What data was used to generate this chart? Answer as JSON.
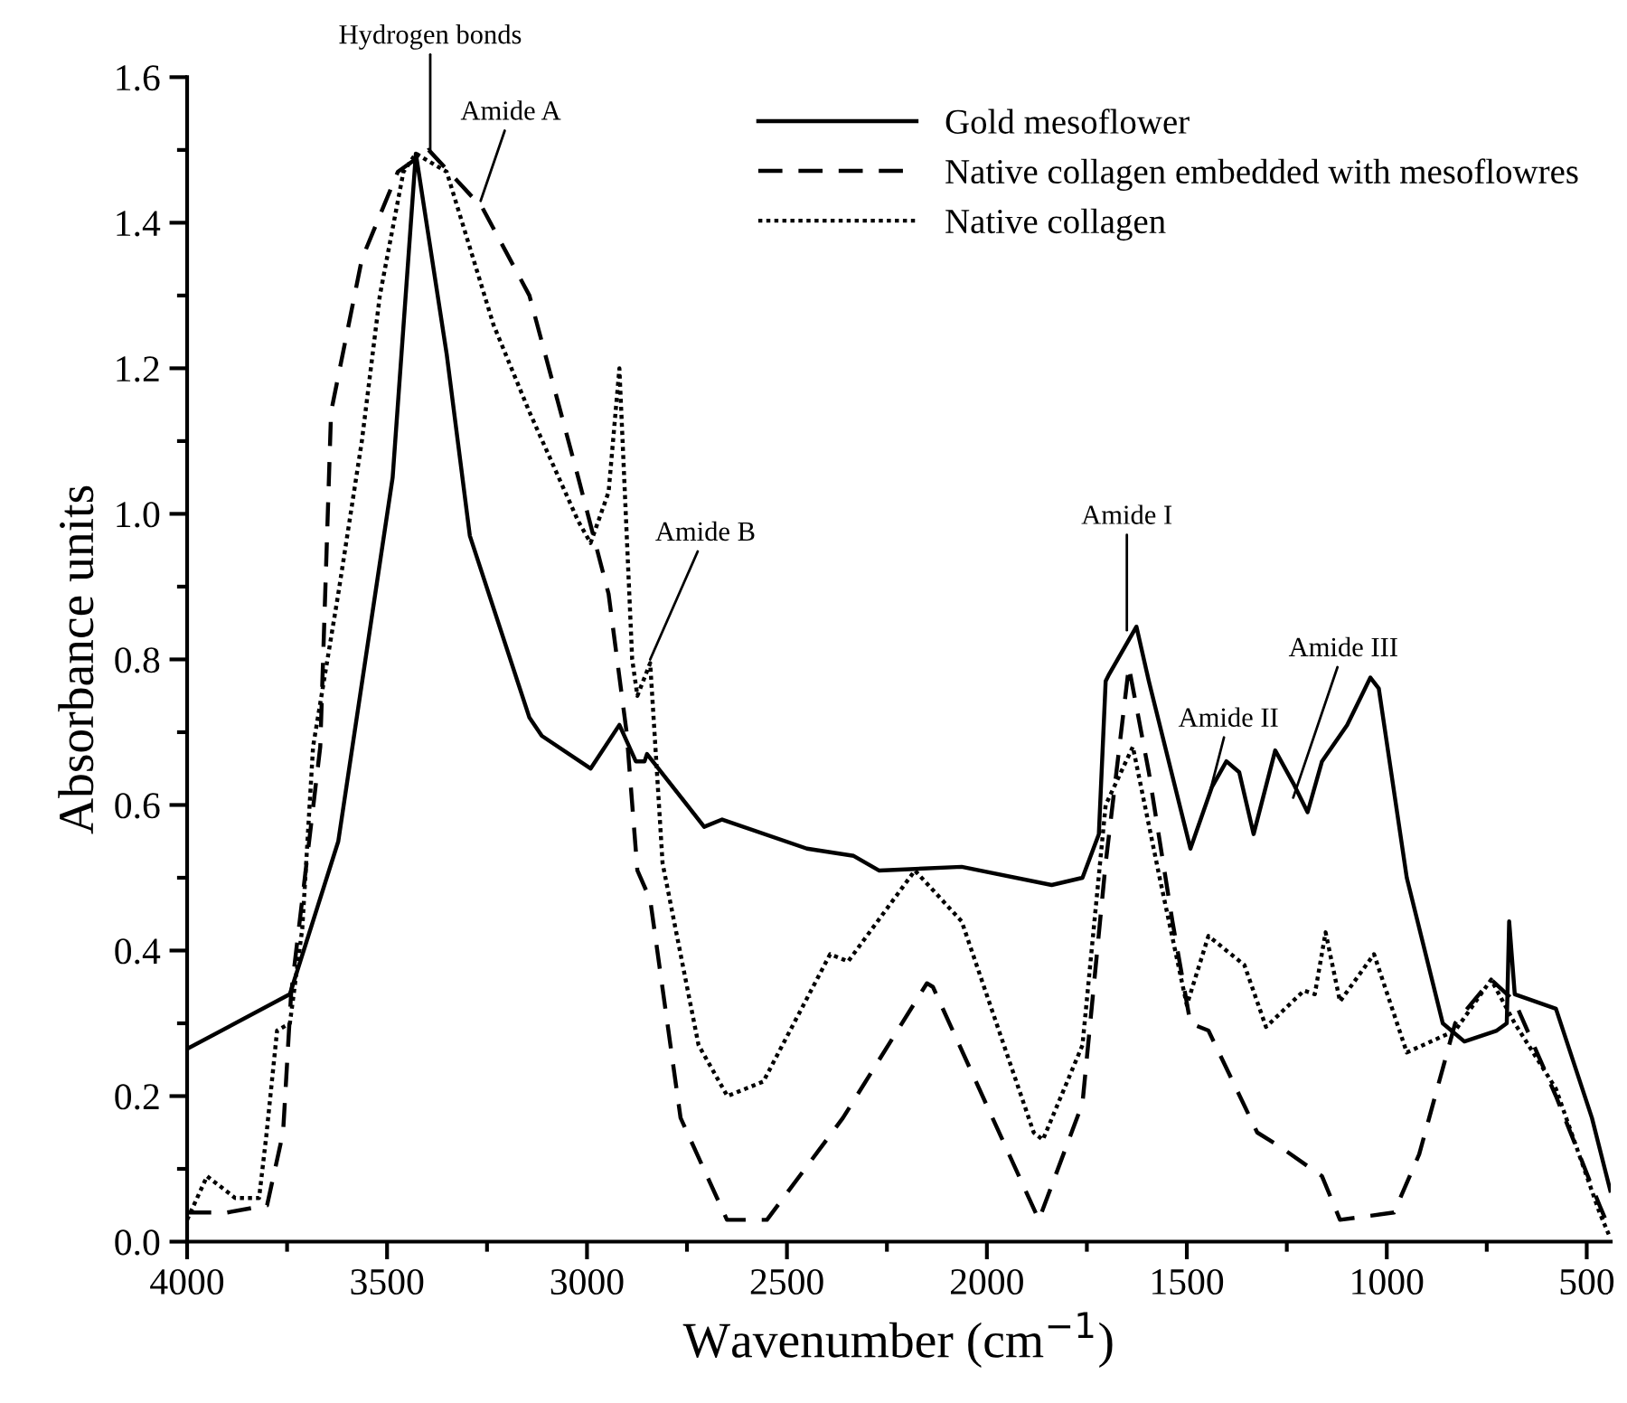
{
  "chart_data": {
    "type": "line",
    "xlabel": "Wavenumber (cm$^{−1}$)",
    "ylabel": "Absorbance units",
    "xlim": [
      4000,
      440
    ],
    "ylim": [
      0,
      1.6
    ],
    "xticks": [
      4000,
      3500,
      3000,
      2500,
      2000,
      1500,
      1000,
      500
    ],
    "yticks": [
      {
        "value": 0,
        "label": "0.0"
      },
      0.2,
      0.4,
      0.6,
      0.8,
      {
        "value": 1,
        "label": "1.0"
      },
      1.2,
      1.4,
      1.6
    ],
    "grid": false,
    "legend": "top right",
    "annotations": [
      {
        "text": "Hydrogen bonds",
        "x": 3392,
        "y": 1.5
      },
      {
        "text": "Amide A",
        "x": 3266,
        "y": 1.43
      },
      {
        "text": "Amide B",
        "x": 2842,
        "y": 0.8
      },
      {
        "text": "Amide I",
        "x": 1650,
        "y": 0.84
      },
      {
        "text": "Amide II",
        "x": 1446,
        "y": 0.61
      },
      {
        "text": "Amide III",
        "x": 1234,
        "y": 0.61
      }
    ],
    "series": [
      {
        "name": "Gold mesoflower",
        "color": "#000000",
        "line_style": "solid",
        "x": [
          4000,
          3743,
          3622,
          3486,
          3428,
          3351,
          3293,
          3144,
          3113,
          2991,
          2919,
          2878,
          2856,
          2850,
          2707,
          2662,
          2450,
          2333,
          2270,
          2063,
          1838,
          1761,
          1720,
          1703,
          1694,
          1626,
          1595,
          1491,
          1437,
          1401,
          1369,
          1333,
          1279,
          1234,
          1198,
          1162,
          1099,
          1041,
          1020,
          950,
          860,
          806,
          725,
          700,
          694,
          680,
          577,
          487,
          441
        ],
        "values": [
          0.265,
          0.34,
          0.55,
          1.05,
          1.495,
          1.22,
          0.97,
          0.72,
          0.695,
          0.65,
          0.71,
          0.66,
          0.66,
          0.67,
          0.57,
          0.58,
          0.54,
          0.53,
          0.51,
          0.515,
          0.49,
          0.5,
          0.56,
          0.77,
          0.78,
          0.845,
          0.77,
          0.54,
          0.625,
          0.66,
          0.645,
          0.56,
          0.675,
          0.63,
          0.59,
          0.66,
          0.71,
          0.775,
          0.76,
          0.5,
          0.3,
          0.275,
          0.29,
          0.3,
          0.44,
          0.34,
          0.32,
          0.17,
          0.07
        ]
      },
      {
        "name": "Native collagen embedded with mesoflowres",
        "color": "#000000",
        "line_style": "dashed",
        "x": [
          4000,
          3900,
          3800,
          3760,
          3740,
          3667,
          3640,
          3563,
          3473,
          3396,
          3261,
          3144,
          3022,
          2946,
          2901,
          2874,
          2842,
          2766,
          2650,
          2550,
          2360,
          2150,
          2135,
          1986,
          1870,
          1761,
          1703,
          1645,
          1595,
          1536,
          1491,
          1446,
          1324,
          1266,
          1162,
          1117,
          982,
          919,
          829,
          739,
          680,
          577,
          468,
          445
        ],
        "values": [
          0.04,
          0.04,
          0.05,
          0.15,
          0.34,
          0.68,
          1.14,
          1.35,
          1.47,
          1.5,
          1.42,
          1.3,
          1.05,
          0.89,
          0.7,
          0.51,
          0.47,
          0.17,
          0.03,
          0.03,
          0.17,
          0.355,
          0.35,
          0.17,
          0.03,
          0.19,
          0.52,
          0.79,
          0.645,
          0.44,
          0.3,
          0.29,
          0.15,
          0.13,
          0.09,
          0.03,
          0.04,
          0.12,
          0.3,
          0.36,
          0.33,
          0.2,
          0.05,
          0.02
        ]
      },
      {
        "name": "Native collagen",
        "color": "#000000",
        "line_style": "dotted",
        "x": [
          4000,
          3950,
          3880,
          3820,
          3802,
          3775,
          3743,
          3712,
          3685,
          3622,
          3563,
          3518,
          3459,
          3428,
          3351,
          3234,
          3144,
          3022,
          2991,
          2946,
          2919,
          2887,
          2874,
          2842,
          2829,
          2811,
          2721,
          2649,
          2559,
          2392,
          2347,
          2180,
          2063,
          1883,
          1860,
          1761,
          1703,
          1635,
          1568,
          1500,
          1446,
          1356,
          1302,
          1207,
          1180,
          1153,
          1117,
          1032,
          950,
          829,
          739,
          680,
          577,
          468,
          445
        ],
        "values": [
          0.03,
          0.09,
          0.06,
          0.06,
          0.145,
          0.29,
          0.3,
          0.43,
          0.68,
          0.89,
          1.1,
          1.3,
          1.47,
          1.495,
          1.47,
          1.26,
          1.14,
          0.99,
          0.96,
          1.03,
          1.2,
          0.8,
          0.75,
          0.795,
          0.68,
          0.52,
          0.27,
          0.2,
          0.22,
          0.395,
          0.385,
          0.51,
          0.44,
          0.15,
          0.14,
          0.27,
          0.6,
          0.68,
          0.5,
          0.325,
          0.42,
          0.38,
          0.295,
          0.345,
          0.34,
          0.425,
          0.33,
          0.395,
          0.26,
          0.29,
          0.36,
          0.3,
          0.21,
          0.04,
          0.01
        ]
      }
    ]
  }
}
